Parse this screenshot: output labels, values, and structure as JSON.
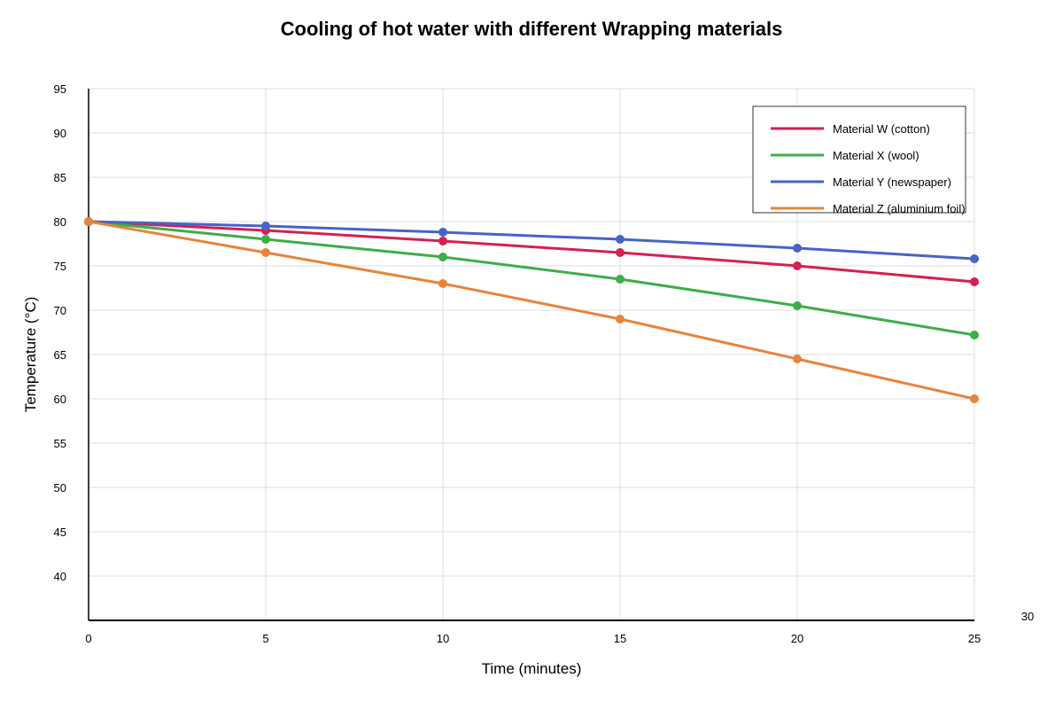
{
  "chart_data": {
    "type": "line",
    "title": "Cooling of hot water with different Wrapping materials",
    "xlabel": "Time (minutes)",
    "ylabel": "Temperature (°C)",
    "x": [
      0,
      5,
      10,
      15,
      20,
      25
    ],
    "x_ticks": [
      "0",
      "5",
      "10",
      "15",
      "20",
      "25"
    ],
    "y_ticks": [
      "40",
      "45",
      "50",
      "55",
      "60",
      "65",
      "70",
      "75",
      "80",
      "85",
      "90",
      "95"
    ],
    "stray_tick": "30",
    "xlim": [
      0,
      25
    ],
    "ylim": [
      35,
      95
    ],
    "grid": true,
    "legend_position": "top-right",
    "series": [
      {
        "name": "Material W (cotton)",
        "color": "#d62050",
        "values": [
          80,
          79,
          77.8,
          76.5,
          75,
          73.2
        ]
      },
      {
        "name": "Material X (wool)",
        "color": "#3cae4a",
        "values": [
          80,
          78,
          76,
          73.5,
          70.5,
          67.2
        ]
      },
      {
        "name": "Material Y (newspaper)",
        "color": "#4763c8",
        "values": [
          80,
          79.5,
          78.8,
          78,
          77,
          75.8
        ]
      },
      {
        "name": "Material Z (aluminium foil)",
        "color": "#e8843a",
        "values": [
          80,
          76.5,
          73,
          69,
          64.5,
          60
        ]
      }
    ]
  }
}
